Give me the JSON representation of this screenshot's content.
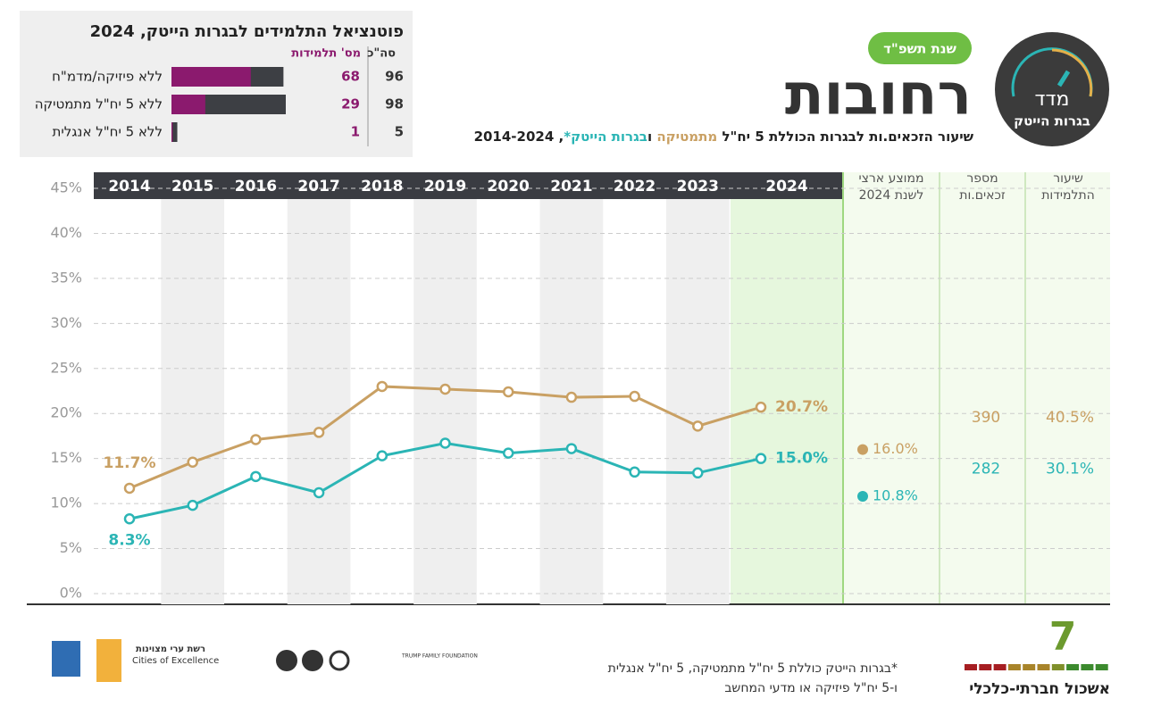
{
  "header": {
    "title": "רחובות",
    "badge": "שנת תשפ\"ד",
    "logo_title": "מדד",
    "logo_subtitle": "בגרות הייטק"
  },
  "chart_data": [
    {
      "type": "line",
      "subtitle": [
        "שיעור הזכאים.ות לבגרות הכוללת 5 יח\"ל",
        "מתמטיקה",
        "ו",
        "בגרות הייטק*",
        ", 2014-2024"
      ],
      "categories": [
        "2014",
        "2015",
        "2016",
        "2017",
        "2018",
        "2019",
        "2020",
        "2021",
        "2022",
        "2023",
        "2024"
      ],
      "series": [
        {
          "color": "#c9a063",
          "values": [
            11.7,
            14.6,
            17.1,
            17.9,
            23.0,
            22.7,
            22.4,
            21.8,
            21.9,
            18.6,
            20.7
          ],
          "value_labels": [
            "11.7%",
            null,
            null,
            null,
            null,
            null,
            null,
            null,
            null,
            null,
            "20.7%"
          ]
        },
        {
          "color": "#2bb5b5",
          "values": [
            8.3,
            9.8,
            13.0,
            11.2,
            15.3,
            16.7,
            15.6,
            16.1,
            13.5,
            13.4,
            15.0
          ],
          "value_labels": [
            "8.3%",
            null,
            null,
            null,
            null,
            null,
            null,
            null,
            null,
            null,
            "15.0%"
          ]
        }
      ],
      "ylim": [
        0,
        45
      ],
      "yticks": [
        {
          "value": 0,
          "label": "0%"
        },
        {
          "value": 5,
          "label": "5%"
        },
        {
          "value": 10,
          "label": "10%"
        },
        {
          "value": 15,
          "label": "15%"
        },
        {
          "value": 20,
          "label": "20%"
        },
        {
          "value": 25,
          "label": "25%"
        },
        {
          "value": 30,
          "label": "30%"
        },
        {
          "value": 35,
          "label": "35%"
        },
        {
          "value": 40,
          "label": "40%"
        },
        {
          "value": 45,
          "label": "45%"
        }
      ],
      "grid": true,
      "national_average": {
        "title": [
          "ממוצע ארצי",
          "לשנת 2024"
        ],
        "values": [
          16.0,
          10.8
        ],
        "value_labels": [
          "16.0%",
          "10.8%"
        ]
      },
      "count": {
        "title": [
          "מספר",
          "זכאים.ות"
        ],
        "values": [
          390,
          282
        ]
      },
      "female_rate": {
        "title": [
          "שיעור",
          "התלמידות"
        ],
        "values": [
          40.5,
          30.1
        ],
        "value_labels": [
          "40.5%",
          "30.1%"
        ]
      }
    },
    {
      "type": "bar",
      "orientation": "horizontal",
      "title": "פוטנציאל התלמידים לבגרות הייטק, 2024",
      "categories": [
        "ללא פיזיקה/מדמ\"ח",
        "ללא 5 יח\"ל מתמטיקה",
        "ללא 5 יח\"ל אנגלית"
      ],
      "series": [
        {
          "name": "סה\"כ",
          "color": "#3d3f44",
          "values": [
            96,
            98,
            5
          ]
        },
        {
          "name": "מס' תלמידות",
          "color": "#8b1a6e",
          "values": [
            68,
            29,
            1
          ]
        }
      ]
    }
  ],
  "footnote": [
    "*בגרות הייטק כוללת 5 יח\"ל מתמטיקה, 5 יח\"ל אנגלית",
    "ו-5 יח\"ל פיזיקה או מדעי המחשב"
  ],
  "cluster": {
    "number": 7,
    "label": "אשכול חברתי-כלכלי"
  },
  "partners": [
    "רשת ערי מצוינות",
    "Cities of Excellence",
    "TRUMP FAMILY FOUNDATION"
  ]
}
